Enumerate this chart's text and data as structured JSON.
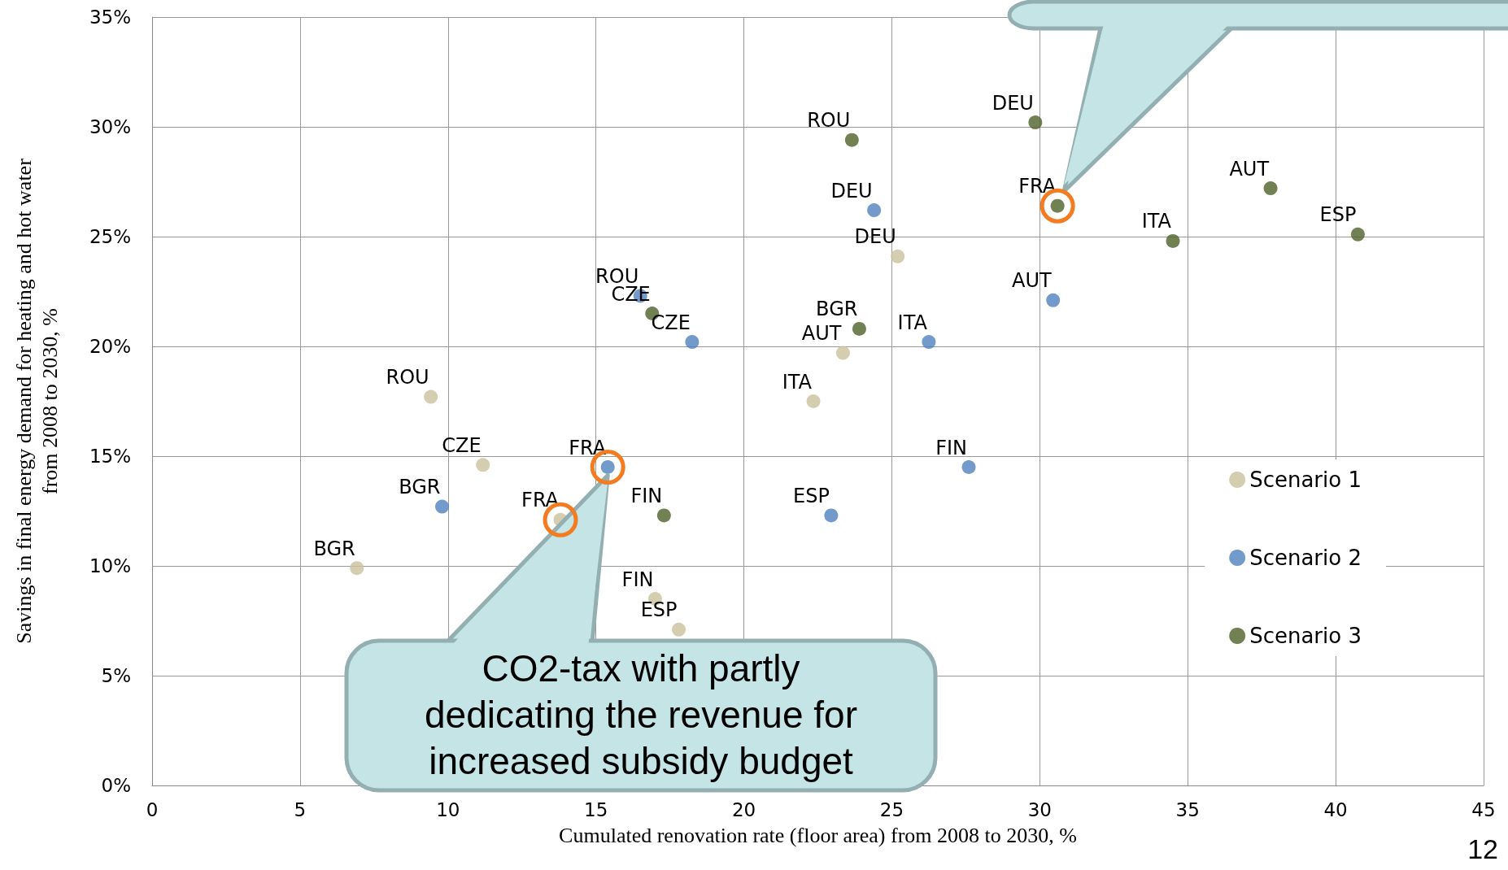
{
  "chart_data": {
    "type": "scatter",
    "xlabel": "Cumulated renovation rate (floor area) from 2008 to 2030, %",
    "ylabel": "Savings in final energy demand for heating and hot water\nfrom 2008 to 2030, %",
    "series": [
      {
        "name": "Scenario 1",
        "color": "#c9c19c",
        "x": [
          13.8,
          9.42,
          11.18,
          6.92,
          17.0,
          17.8,
          22.35,
          23.35,
          25.2
        ],
        "values": [
          12.1,
          17.7,
          14.6,
          9.9,
          8.5,
          7.1,
          17.5,
          19.7,
          24.1
        ]
      },
      {
        "name": "Scenario 2",
        "color": "#4f81bd",
        "x": [
          15.4,
          9.8,
          16.5,
          18.25,
          22.95,
          24.4,
          26.25,
          27.6,
          30.45
        ],
        "values": [
          14.5,
          12.7,
          22.3,
          20.2,
          12.3,
          26.2,
          20.2,
          14.5,
          22.1
        ]
      },
      {
        "name": "Scenario 3",
        "color": "#4f6228",
        "x": [
          30.6,
          16.9,
          17.3,
          23.65,
          23.9,
          29.85,
          34.5,
          37.8,
          40.75
        ],
        "values": [
          26.4,
          21.5,
          12.3,
          29.4,
          20.8,
          30.2,
          24.8,
          27.2,
          25.1
        ]
      }
    ],
    "xlim": [
      0,
      45
    ],
    "xticks": [
      0,
      5,
      10,
      15,
      20,
      25,
      30,
      35,
      40,
      45
    ],
    "ylim": [
      0,
      35
    ],
    "yticks": [
      {
        "value": 0,
        "label": "0%"
      },
      {
        "value": 5,
        "label": "5%"
      },
      {
        "value": 10,
        "label": "10%"
      },
      {
        "value": 15,
        "label": "15%"
      },
      {
        "value": 20,
        "label": "20%"
      },
      {
        "value": 25,
        "label": "25%"
      },
      {
        "value": 30,
        "label": "30%"
      },
      {
        "value": 35,
        "label": "35%"
      }
    ],
    "grid": true,
    "legend": "right",
    "marker": "circle",
    "annotations": [
      {
        "text": "FRA",
        "x": 13.8,
        "y": 12.1
      },
      {
        "text": "ROU",
        "x": 9.42,
        "y": 17.7
      },
      {
        "text": "CZE",
        "x": 11.18,
        "y": 14.6
      },
      {
        "text": "BGR",
        "x": 6.92,
        "y": 9.9
      },
      {
        "text": "FIN",
        "x": 17.0,
        "y": 8.5
      },
      {
        "text": "ESP",
        "x": 17.8,
        "y": 7.1
      },
      {
        "text": "ITA",
        "x": 22.35,
        "y": 17.5
      },
      {
        "text": "AUT",
        "x": 23.35,
        "y": 19.7
      },
      {
        "text": "DEU",
        "x": 25.2,
        "y": 24.1
      },
      {
        "text": "FRA",
        "x": 15.4,
        "y": 14.5
      },
      {
        "text": "BGR",
        "x": 9.8,
        "y": 12.7
      },
      {
        "text": "ROU",
        "x": 16.5,
        "y": 22.3
      },
      {
        "text": "CZE",
        "x": 18.25,
        "y": 20.2
      },
      {
        "text": "ESP",
        "x": 22.95,
        "y": 12.3
      },
      {
        "text": "DEU",
        "x": 24.4,
        "y": 26.2
      },
      {
        "text": "ITA",
        "x": 26.25,
        "y": 20.2
      },
      {
        "text": "FIN",
        "x": 27.6,
        "y": 14.5
      },
      {
        "text": "AUT",
        "x": 30.45,
        "y": 22.1
      },
      {
        "text": "FRA",
        "x": 30.6,
        "y": 26.4
      },
      {
        "text": "CZE",
        "x": 16.9,
        "y": 21.5
      },
      {
        "text": "FIN",
        "x": 17.3,
        "y": 12.3
      },
      {
        "text": "ROU",
        "x": 23.65,
        "y": 29.4
      },
      {
        "text": "BGR",
        "x": 23.9,
        "y": 20.8
      },
      {
        "text": "DEU",
        "x": 29.85,
        "y": 30.2
      },
      {
        "text": "ITA",
        "x": 34.5,
        "y": 24.8
      },
      {
        "text": "AUT",
        "x": 37.8,
        "y": 27.2
      },
      {
        "text": "ESP",
        "x": 40.75,
        "y": 25.1
      },
      "CO2-tax with partly dedicating the revenue for increased subsidy budget",
      "12"
    ]
  }
}
